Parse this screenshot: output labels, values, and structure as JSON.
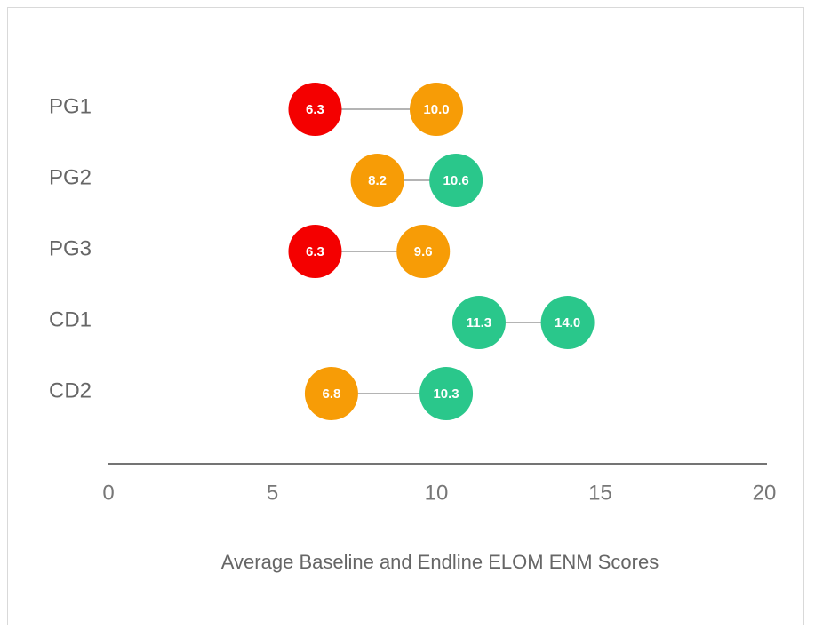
{
  "chart_data": {
    "type": "dumbbell",
    "xlabel": "Average Baseline and Endline ELOM ENM Scores",
    "categories": [
      "PG1",
      "PG2",
      "PG3",
      "CD1",
      "CD2"
    ],
    "series": [
      {
        "values": [
          6.3,
          8.2,
          6.3,
          11.3,
          6.8
        ],
        "value_labels": [
          "6.3",
          "8.2",
          "6.3",
          "11.3",
          "6.8"
        ],
        "colors": [
          "#f40000",
          "#f79c06",
          "#f40000",
          "#2ac78b",
          "#f79c06"
        ]
      },
      {
        "values": [
          10.0,
          10.6,
          9.6,
          14.0,
          10.3
        ],
        "value_labels": [
          "10.0",
          "10.6",
          "9.6",
          "14.0",
          "10.3"
        ],
        "colors": [
          "#f79c06",
          "#2ac78b",
          "#f79c06",
          "#2ac78b",
          "#2ac78b"
        ]
      }
    ],
    "xlim": [
      0,
      20
    ],
    "xticks": [
      0,
      5,
      10,
      15,
      20
    ],
    "connector_color": "#888888"
  }
}
